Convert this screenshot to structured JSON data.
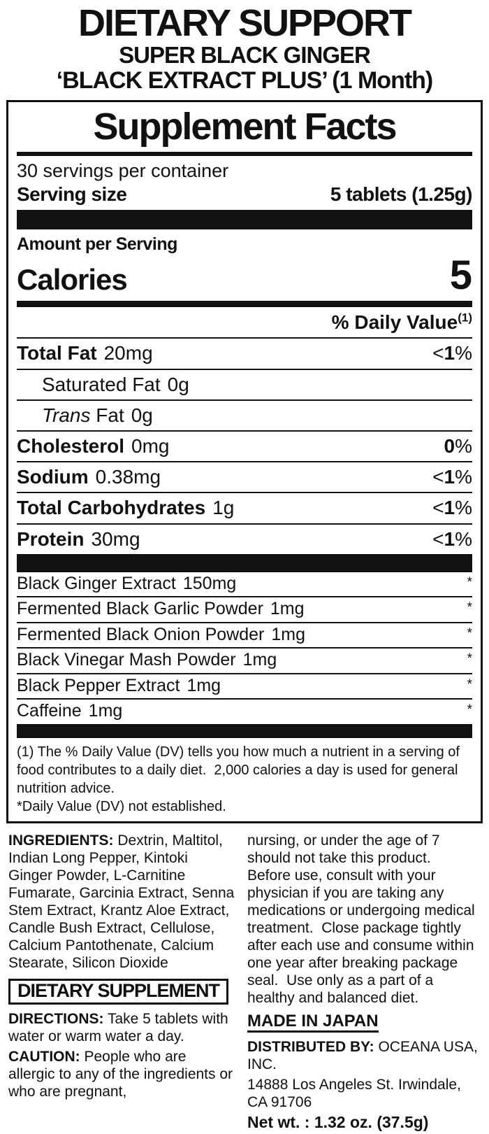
{
  "colors": {
    "ink": "#111111",
    "background": "#ffffff"
  },
  "header": {
    "line1": "DIETARY SUPPORT",
    "line2": "SUPER BLACK GINGER",
    "line3": "‘BLACK EXTRACT PLUS’ (1 Month)"
  },
  "facts": {
    "title": "Supplement Facts",
    "servings": "30 servings per container",
    "serving_size_label": "Serving size",
    "serving_size_value": "5 tablets (1.25g)",
    "amount_per_serving": "Amount per Serving",
    "calories_label": "Calories",
    "calories_value": "5",
    "daily_value_header": "% Daily Value",
    "daily_value_sup": "(1)",
    "nutrients": [
      {
        "name_bold": "Total Fat",
        "name_italic": "",
        "name_regular": "",
        "amount": "20mg",
        "dv_lt": "<",
        "dv_value": "1",
        "dv_pct": "%"
      },
      {
        "name_bold": "",
        "name_italic": "",
        "name_regular": "Saturated Fat",
        "amount": "0g",
        "dv_lt": "",
        "dv_value": "",
        "dv_pct": ""
      },
      {
        "name_bold": "",
        "name_italic": "Trans",
        "name_regular": " Fat",
        "amount": "0g",
        "dv_lt": "",
        "dv_value": "",
        "dv_pct": ""
      },
      {
        "name_bold": "Cholesterol",
        "name_italic": "",
        "name_regular": "",
        "amount": "0mg",
        "dv_lt": "",
        "dv_value": "0",
        "dv_pct": "%"
      },
      {
        "name_bold": "Sodium",
        "name_italic": "",
        "name_regular": "",
        "amount": "0.38mg",
        "dv_lt": "<",
        "dv_value": "1",
        "dv_pct": "%"
      },
      {
        "name_bold": "Total Carbohydrates",
        "name_italic": "",
        "name_regular": "",
        "amount": "1g",
        "dv_lt": "<",
        "dv_value": "1",
        "dv_pct": "%"
      },
      {
        "name_bold": "Protein",
        "name_italic": "",
        "name_regular": "",
        "amount": "30mg",
        "dv_lt": "<",
        "dv_value": "1",
        "dv_pct": "%"
      }
    ],
    "extracts": [
      {
        "name": "Black Ginger Extract",
        "amount": "150mg",
        "dv": "*"
      },
      {
        "name": "Fermented Black Garlic Powder",
        "amount": "1mg",
        "dv": "*"
      },
      {
        "name": "Fermented Black Onion Powder",
        "amount": "1mg",
        "dv": "*"
      },
      {
        "name": "Black Vinegar Mash Powder",
        "amount": "1mg",
        "dv": "*"
      },
      {
        "name": "Black Pepper Extract",
        "amount": "1mg",
        "dv": "*"
      },
      {
        "name": "Caffeine",
        "amount": "1mg",
        "dv": "*"
      }
    ],
    "footnote1": "(1) The % Daily Value (DV) tells you how much a nutrient in a serving of food contributes to a daily diet.  2,000 calories a day is used for general nutrition advice.",
    "footnote2": "*Daily Value (DV) not established."
  },
  "left_column": {
    "ingredients_label": "INGREDIENTS:",
    "ingredients_text": " Dextrin, Maltitol, Indian Long Pepper, Kintoki Ginger Powder, L-Carnitine Fumarate, Garcinia Extract, Senna Stem Extract, Krantz Aloe Extract, Candle Bush Extract, Cellulose, Calcium Pantothenate, Calcium Stearate, Silicon Dioxide",
    "badge": "DIETARY SUPPLEMENT",
    "directions_label": "DIRECTIONS:",
    "directions_text": " Take 5 tablets with water or warm water a day.",
    "caution_label": "CAUTION:",
    "caution_text": " People who are allergic to any of the ingredients or who are pregnant,"
  },
  "right_column": {
    "caution_cont": "nursing, or under the age of 7 should not take this product.  Before use, consult with your physician if you are taking any medications or undergoing medical treatment.  Close package tightly after each use and consume within one year after breaking package seal.  Use only as a part of a healthy and balanced diet.",
    "made_in": "MADE IN JAPAN",
    "distributed_label": "DISTRIBUTED BY:",
    "distributed_text": " OCEANA USA, INC.",
    "address": "14888 Los Angeles St. Irwindale, CA 91706",
    "net_wt": "Net wt. : 1.32 oz. (37.5g)"
  }
}
